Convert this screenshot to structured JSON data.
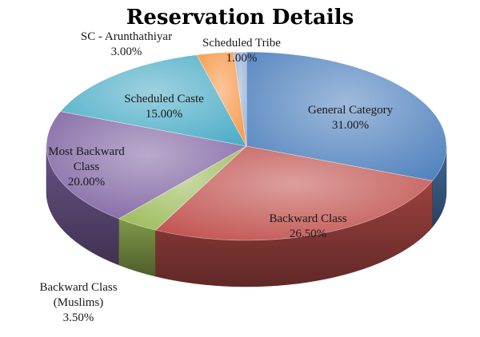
{
  "chart_data": {
    "type": "pie",
    "title": "Reservation Details",
    "style": "3d",
    "slices": [
      {
        "label_lines": [
          "General Category"
        ],
        "value_text": "31.00%",
        "value": 31.0,
        "color": "#4F81BD"
      },
      {
        "label_lines": [
          "Backward Class"
        ],
        "value_text": "26.50%",
        "value": 26.5,
        "color": "#C0504D"
      },
      {
        "label_lines": [
          "Backward Class",
          "(Muslims)"
        ],
        "value_text": "3.50%",
        "value": 3.5,
        "color": "#9BBB59"
      },
      {
        "label_lines": [
          "Most Backward",
          "Class"
        ],
        "value_text": "20.00%",
        "value": 20.0,
        "color": "#8064A2"
      },
      {
        "label_lines": [
          "Scheduled Caste"
        ],
        "value_text": "15.00%",
        "value": 15.0,
        "color": "#4BACC6"
      },
      {
        "label_lines": [
          "SC - Arunthathiyar"
        ],
        "value_text": "3.00%",
        "value": 3.0,
        "color": "#F79646"
      },
      {
        "label_lines": [
          "Scheduled Tribe"
        ],
        "value_text": "1.00%",
        "value": 1.0,
        "color": "#95B3D7"
      }
    ]
  }
}
